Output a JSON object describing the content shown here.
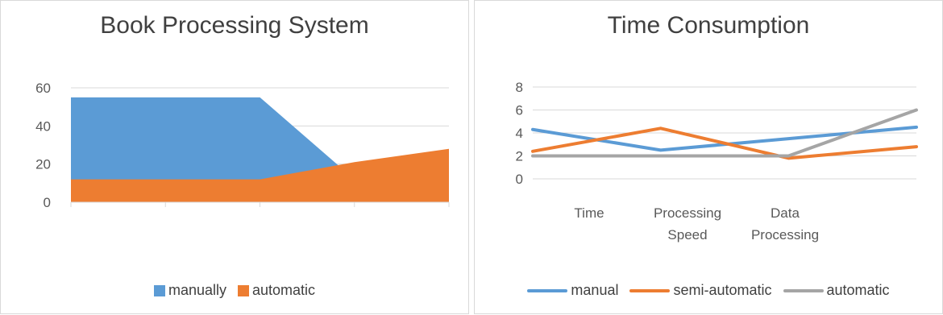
{
  "chart_data": [
    {
      "type": "area",
      "title": "Book Processing System",
      "categories": [
        "",
        "",
        "",
        "",
        ""
      ],
      "series": [
        {
          "name": "manually",
          "values": [
            55,
            55,
            55,
            12,
            12
          ],
          "color": "#5b9bd5"
        },
        {
          "name": "automatic",
          "values": [
            12,
            12,
            12,
            21,
            28
          ],
          "color": "#ed7d31"
        }
      ],
      "yticks": [
        "0",
        "20",
        "40",
        "60"
      ],
      "ylim": [
        0,
        60
      ],
      "grid": true,
      "legend": "bottom"
    },
    {
      "type": "line",
      "title": "Time Consumption",
      "categories": [
        "Time",
        "Processing Speed",
        "Data Processing",
        ""
      ],
      "series": [
        {
          "name": "manual",
          "values": [
            4.3,
            2.5,
            3.5,
            4.5
          ],
          "color": "#5b9bd5"
        },
        {
          "name": "semi-automatic",
          "values": [
            2.4,
            4.4,
            1.8,
            2.8
          ],
          "color": "#ed7d31"
        },
        {
          "name": "automatic",
          "values": [
            2.0,
            2.0,
            2.0,
            6.0
          ],
          "color": "#a5a5a5"
        }
      ],
      "yticks": [
        "0",
        "2",
        "4",
        "6",
        "8"
      ],
      "ylim": [
        0,
        8
      ],
      "grid": true,
      "legend": "bottom"
    }
  ]
}
